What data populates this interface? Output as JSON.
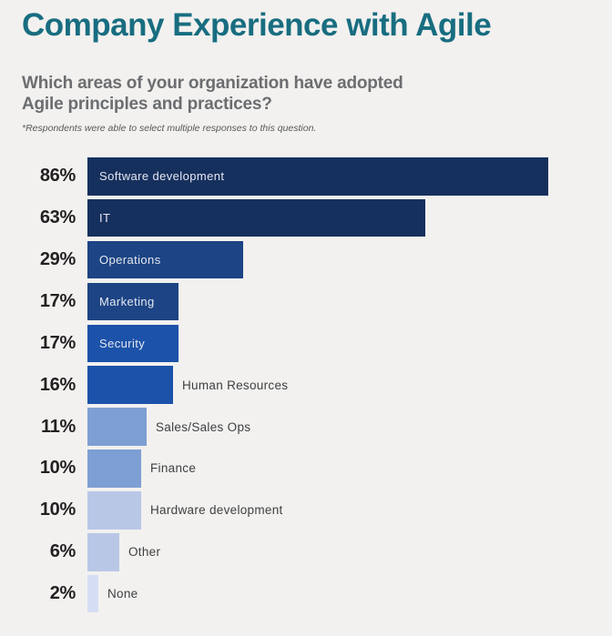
{
  "page": {
    "title": "Company Experience with Agile",
    "question_line1": "Which areas of your organization have adopted",
    "question_line2": "Agile principles and practices?",
    "footnote": "*Respondents were able to select multiple responses to this question."
  },
  "chart_data": {
    "type": "bar",
    "orientation": "horizontal",
    "title": "Company Experience with Agile",
    "subtitle": "Which areas of your organization have adopted Agile principles and practices?",
    "footnote": "*Respondents were able to select multiple responses to this question.",
    "categories": [
      "Software development",
      "IT",
      "Operations",
      "Marketing",
      "Security",
      "Human Resources",
      "Sales/Sales Ops",
      "Finance",
      "Hardware development",
      "Other",
      "None"
    ],
    "values": [
      86,
      63,
      29,
      17,
      17,
      16,
      11,
      10,
      10,
      6,
      2
    ],
    "value_labels": [
      "86%",
      "63%",
      "29%",
      "17%",
      "17%",
      "16%",
      "11%",
      "10%",
      "10%",
      "6%",
      "2%"
    ],
    "bar_colors": [
      "#16305e",
      "#16305e",
      "#1d4484",
      "#1d4484",
      "#1c52a9",
      "#1c52a9",
      "#7e9fd3",
      "#7e9fd3",
      "#b9c7e7",
      "#b9c7e7",
      "#d5def2"
    ],
    "label_placement": [
      "inside",
      "inside",
      "inside",
      "inside",
      "inside",
      "outside",
      "outside",
      "outside",
      "outside",
      "outside",
      "outside"
    ],
    "xlabel": "",
    "ylabel": "",
    "axis_range": [
      0,
      86
    ],
    "grid": false,
    "legend": false,
    "colors": {
      "background": "#f2f1ef",
      "title": "#186d80",
      "subtitle": "#6c6d70",
      "footnote": "#57585a",
      "value_label": "#232021",
      "inside_label": "#e4e7ef",
      "outside_label": "#3f4042"
    }
  }
}
